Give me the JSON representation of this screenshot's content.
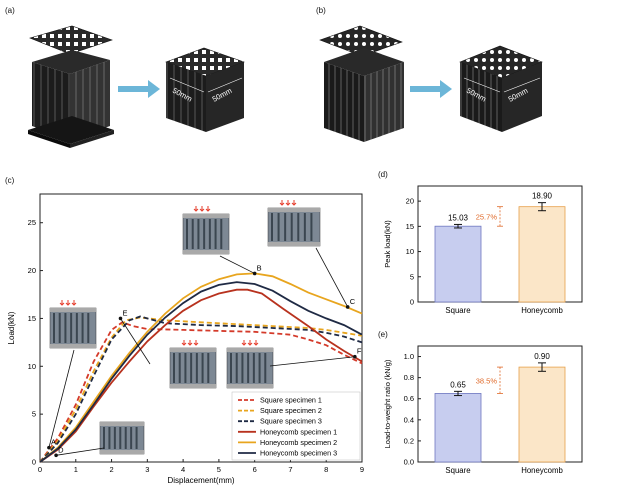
{
  "panels": {
    "a": {
      "label": "(a)",
      "dims": [
        "50mm",
        "50mm"
      ]
    },
    "b": {
      "label": "(b)",
      "dims": [
        "50mm",
        "50mm"
      ]
    },
    "c": {
      "label": "(c)"
    },
    "d": {
      "label": "(d)"
    },
    "e": {
      "label": "(e)"
    }
  },
  "colors": {
    "square_series": "#d43a2a",
    "honeycomb_series": "#e8a51e",
    "dark_series": "#1f2a44",
    "arrow": "#6cb6d8",
    "bar_square": "#c7cdef",
    "bar_honeycomb": "#fbe6c8",
    "gap_annotation": "#e06a2a",
    "block": "#1e1e1e"
  },
  "chart_data": [
    {
      "id": "c",
      "type": "line",
      "xlabel": "Displacement(mm)",
      "ylabel": "Load(kN)",
      "xlim": [
        0,
        9
      ],
      "ylim": [
        0,
        28
      ],
      "xticks": [
        0,
        1,
        2,
        3,
        4,
        5,
        6,
        7,
        8,
        9
      ],
      "yticks": [
        0,
        5,
        10,
        15,
        20,
        25
      ],
      "point_labels": [
        {
          "text": "A",
          "x": 0.25,
          "y": 1.5
        },
        {
          "text": "D",
          "x": 0.45,
          "y": 0.7
        },
        {
          "text": "E",
          "x": 2.25,
          "y": 15.0
        },
        {
          "text": "B",
          "x": 6.0,
          "y": 19.7
        },
        {
          "text": "C",
          "x": 8.6,
          "y": 16.2
        },
        {
          "text": "F",
          "x": 8.8,
          "y": 11.0
        }
      ],
      "series": [
        {
          "name": "Square specimen 1",
          "color": "#d43a2a",
          "dash": true,
          "x": [
            0,
            0.5,
            1.0,
            1.5,
            2.0,
            2.3,
            2.6,
            3.0,
            4.0,
            5.0,
            6.0,
            7.0,
            7.5,
            8.0,
            8.5,
            9.0
          ],
          "y": [
            0,
            2.5,
            6.0,
            10.5,
            13.8,
            14.6,
            14.2,
            13.9,
            13.8,
            13.7,
            13.6,
            13.3,
            12.8,
            12.2,
            11.2,
            10.3
          ]
        },
        {
          "name": "Square specimen 2",
          "color": "#e8a51e",
          "dash": true,
          "x": [
            0,
            0.5,
            1.0,
            1.5,
            2.0,
            2.4,
            2.8,
            3.5,
            4.5,
            5.5,
            6.5,
            7.5,
            8.0,
            8.5,
            9.0
          ],
          "y": [
            0,
            2.2,
            5.5,
            9.5,
            13.0,
            14.8,
            15.1,
            14.8,
            14.6,
            14.4,
            14.2,
            14.0,
            13.8,
            13.5,
            13.2
          ]
        },
        {
          "name": "Square specimen 3",
          "color": "#1f2a44",
          "dash": true,
          "x": [
            0,
            0.5,
            1.0,
            1.5,
            2.0,
            2.5,
            2.8,
            3.5,
            4.5,
            5.5,
            6.5,
            7.5,
            8.0,
            8.5,
            9.0
          ],
          "y": [
            0,
            2.0,
            5.0,
            9.0,
            12.8,
            14.8,
            15.2,
            14.5,
            14.3,
            14.2,
            14.0,
            13.8,
            13.5,
            13.1,
            12.5
          ]
        },
        {
          "name": "Honeycomb specimen 1",
          "color": "#b8321e",
          "dash": false,
          "x": [
            0,
            0.5,
            1.0,
            1.5,
            2.0,
            2.5,
            3.0,
            3.5,
            4.0,
            4.5,
            5.0,
            5.5,
            5.8,
            6.2,
            6.8,
            7.5,
            8.0,
            8.5,
            9.0
          ],
          "y": [
            0,
            1.3,
            3.2,
            5.8,
            8.3,
            10.5,
            12.6,
            14.3,
            15.8,
            16.9,
            17.6,
            18.0,
            18.0,
            17.6,
            16.0,
            14.2,
            12.8,
            11.6,
            10.5
          ]
        },
        {
          "name": "Honeycomb specimen 2",
          "color": "#e8a51e",
          "dash": false,
          "x": [
            0,
            0.5,
            1.0,
            1.5,
            2.0,
            2.5,
            3.0,
            3.5,
            4.0,
            4.5,
            5.0,
            5.5,
            6.0,
            6.5,
            7.0,
            7.5,
            8.0,
            8.5,
            9.0
          ],
          "y": [
            0,
            1.5,
            3.6,
            6.3,
            9.0,
            11.4,
            13.6,
            15.5,
            17.1,
            18.3,
            19.1,
            19.6,
            19.7,
            19.4,
            18.6,
            17.7,
            17.0,
            16.3,
            15.5
          ]
        },
        {
          "name": "Honeycomb specimen 3",
          "color": "#1f2a44",
          "dash": false,
          "x": [
            0,
            0.5,
            1.0,
            1.5,
            2.0,
            2.5,
            3.0,
            3.5,
            4.0,
            4.5,
            5.0,
            5.5,
            6.0,
            6.5,
            7.0,
            7.5,
            8.0,
            8.5,
            9.0
          ],
          "y": [
            0,
            1.4,
            3.4,
            6.0,
            8.7,
            11.1,
            13.3,
            15.1,
            16.6,
            17.8,
            18.5,
            18.8,
            18.6,
            17.9,
            16.8,
            15.8,
            15.0,
            14.3,
            13.3
          ]
        }
      ]
    },
    {
      "id": "d",
      "type": "bar",
      "categories": [
        "Square",
        "Honeycomb"
      ],
      "values": [
        15.03,
        18.9
      ],
      "value_labels": [
        "15.03",
        "18.90"
      ],
      "errors": [
        0.35,
        0.8
      ],
      "ylabel": "Peak load(kN)",
      "ylim": [
        0,
        23
      ],
      "yticks": [
        0,
        5,
        10,
        15,
        20
      ],
      "annotation": "25.7%"
    },
    {
      "id": "e",
      "type": "bar",
      "categories": [
        "Square",
        "Honeycomb"
      ],
      "values": [
        0.65,
        0.9
      ],
      "value_labels": [
        "0.65",
        "0.90"
      ],
      "errors": [
        0.02,
        0.04
      ],
      "ylabel": "Load-to-weight ratio (kN/g)",
      "ylim": [
        0,
        1.1
      ],
      "yticks": [
        0.0,
        0.2,
        0.4,
        0.6,
        0.8,
        1.0
      ],
      "annotation": "38.5%"
    }
  ]
}
